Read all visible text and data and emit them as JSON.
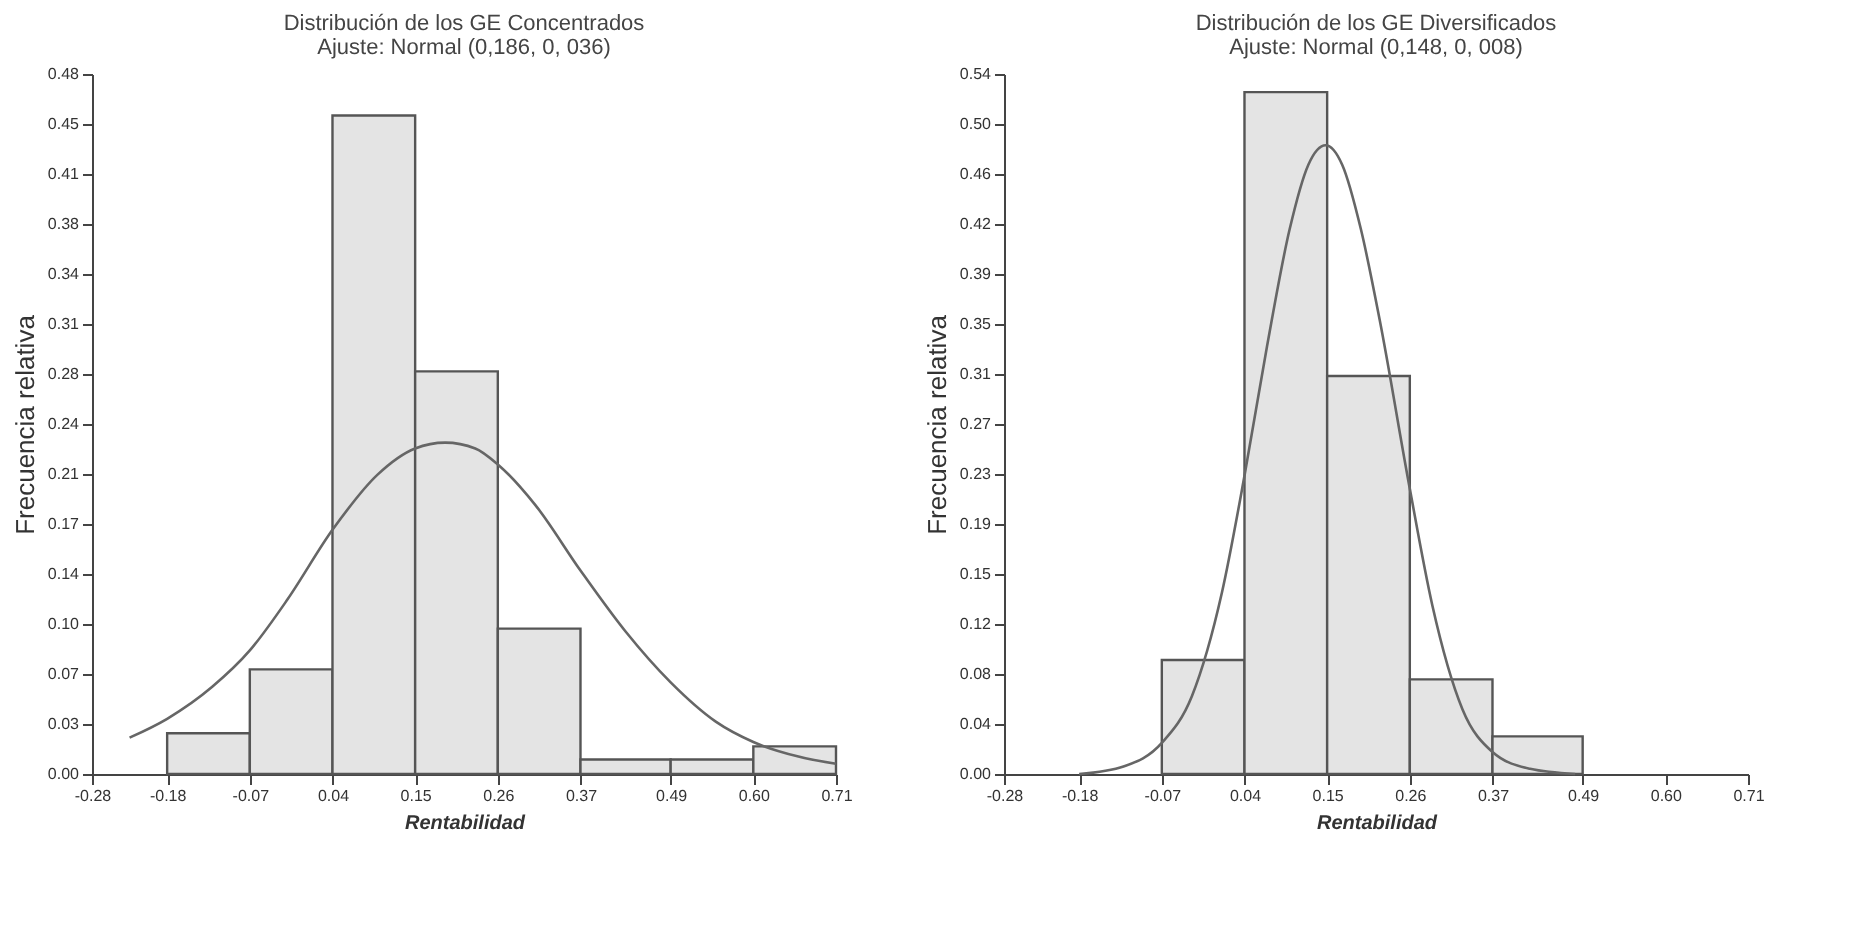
{
  "chart_data": [
    {
      "type": "histogram",
      "title": "Distribución de los GE Concentrados",
      "subtitle": "Ajuste: Normal (0,186, 0, 036)",
      "xlabel": "Rentabilidad",
      "ylabel": "Frecuencia relativa",
      "color": "#e4e4e4",
      "bins": [
        -0.18,
        -0.07,
        0.04,
        0.15,
        0.26,
        0.37,
        0.49,
        0.6,
        0.71
      ],
      "values": [
        0.028,
        0.072,
        0.453,
        0.277,
        0.1,
        0.01,
        0.01,
        0.019
      ],
      "series": [
        {
          "type": "line",
          "color": "#666666",
          "x": [
            -0.23,
            -0.18,
            -0.12,
            -0.07,
            -0.02,
            0.04,
            0.1,
            0.15,
            0.19,
            0.23,
            0.26,
            0.31,
            0.37,
            0.43,
            0.49,
            0.55,
            0.6,
            0.66,
            0.71
          ],
          "values": [
            0.025,
            0.038,
            0.06,
            0.085,
            0.12,
            0.168,
            0.206,
            0.224,
            0.228,
            0.224,
            0.213,
            0.185,
            0.14,
            0.098,
            0.063,
            0.036,
            0.022,
            0.012,
            0.007
          ]
        }
      ],
      "xlim": [
        -0.28,
        0.71
      ],
      "xticks": [
        -0.28,
        -0.18,
        -0.07,
        0.04,
        0.15,
        0.26,
        0.37,
        0.49,
        {
          "value": 0.6,
          "label": "0.60"
        },
        0.71
      ],
      "ylim": [
        0,
        0.4816
      ],
      "yticks": [
        {
          "value": 0,
          "label": "0.00"
        },
        {
          "value": 0.0344,
          "label": "0.03"
        },
        {
          "value": 0.0688,
          "label": "0.07"
        },
        {
          "value": 0.1032,
          "label": "0.10"
        },
        {
          "value": 0.1376,
          "label": "0.14"
        },
        {
          "value": 0.172,
          "label": "0.17"
        },
        {
          "value": 0.2064,
          "label": "0.21"
        },
        {
          "value": 0.2408,
          "label": "0.24"
        },
        {
          "value": 0.2752,
          "label": "0.28"
        },
        {
          "value": 0.3096,
          "label": "0.31"
        },
        {
          "value": 0.344,
          "label": "0.34"
        },
        {
          "value": 0.3784,
          "label": "0.38"
        },
        {
          "value": 0.4128,
          "label": "0.41"
        },
        {
          "value": 0.4472,
          "label": "0.45"
        },
        {
          "value": 0.4816,
          "label": "0.48"
        }
      ]
    },
    {
      "type": "histogram",
      "title": "Distribución de los GE Diversificados",
      "subtitle": "Ajuste: Normal (0,148, 0, 008)",
      "xlabel": "Rentabilidad",
      "ylabel": "Frecuencia relativa",
      "color": "#e4e4e4",
      "bins": [
        -0.07,
        0.04,
        0.15,
        0.26,
        0.37,
        0.49
      ],
      "values": [
        0.088,
        0.526,
        0.307,
        0.073,
        0.029
      ],
      "series": [
        {
          "type": "line",
          "color": "#666666",
          "x": [
            -0.18,
            -0.12,
            -0.07,
            -0.03,
            0.01,
            0.04,
            0.07,
            0.1,
            0.125,
            0.148,
            0.17,
            0.195,
            0.22,
            0.26,
            0.29,
            0.33,
            0.37,
            0.42,
            0.48
          ],
          "values": [
            0.0,
            0.006,
            0.024,
            0.06,
            0.14,
            0.23,
            0.33,
            0.42,
            0.47,
            0.485,
            0.47,
            0.42,
            0.35,
            0.22,
            0.13,
            0.05,
            0.017,
            0.004,
            0.0
          ]
        }
      ],
      "xlim": [
        -0.28,
        0.71
      ],
      "xticks": [
        -0.28,
        -0.18,
        -0.07,
        0.04,
        0.15,
        0.26,
        0.37,
        0.49,
        {
          "value": 0.6,
          "label": "0.60"
        },
        0.71
      ],
      "ylim": [
        0,
        0.54
      ],
      "yticks": [
        {
          "value": 0,
          "label": "0.00"
        },
        {
          "value": 0.03857,
          "label": "0.04"
        },
        {
          "value": 0.07714,
          "label": "0.08"
        },
        {
          "value": 0.11571,
          "label": "0.12"
        },
        {
          "value": 0.15429,
          "label": "0.15"
        },
        {
          "value": 0.19286,
          "label": "0.19"
        },
        {
          "value": 0.23143,
          "label": "0.23"
        },
        {
          "value": 0.27,
          "label": "0.27"
        },
        {
          "value": 0.30857,
          "label": "0.31"
        },
        {
          "value": 0.34714,
          "label": "0.35"
        },
        {
          "value": 0.38571,
          "label": "0.39"
        },
        {
          "value": 0.42429,
          "label": "0.42"
        },
        {
          "value": 0.46286,
          "label": "0.46"
        },
        {
          "value": 0.50143,
          "label": "0.50"
        },
        {
          "value": 0.54,
          "label": "0.54"
        }
      ]
    }
  ]
}
